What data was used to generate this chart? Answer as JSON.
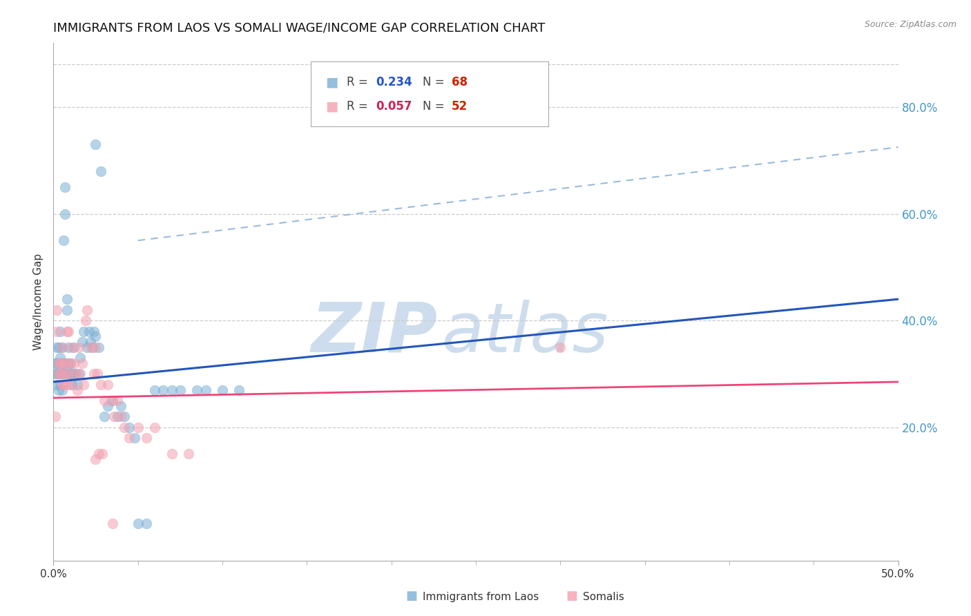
{
  "title": "IMMIGRANTS FROM LAOS VS SOMALI WAGE/INCOME GAP CORRELATION CHART",
  "source": "Source: ZipAtlas.com",
  "ylabel": "Wage/Income Gap",
  "xlim": [
    0.0,
    0.5
  ],
  "ylim": [
    -0.05,
    0.92
  ],
  "xticks": [
    0.0,
    0.5
  ],
  "xtick_labels": [
    "0.0%",
    "50.0%"
  ],
  "yticks_right": [
    0.2,
    0.4,
    0.6,
    0.8
  ],
  "ytick_labels_right": [
    "20.0%",
    "40.0%",
    "60.0%",
    "80.0%"
  ],
  "grid_color": "#cccccc",
  "background_color": "#ffffff",
  "series": [
    {
      "name": "Immigrants from Laos",
      "color": "#7bafd4",
      "R": 0.234,
      "N": 68,
      "x": [
        0.001,
        0.001,
        0.002,
        0.002,
        0.002,
        0.002,
        0.003,
        0.003,
        0.003,
        0.003,
        0.004,
        0.004,
        0.004,
        0.004,
        0.005,
        0.005,
        0.005,
        0.005,
        0.006,
        0.006,
        0.006,
        0.007,
        0.007,
        0.007,
        0.007,
        0.008,
        0.008,
        0.009,
        0.009,
        0.009,
        0.01,
        0.01,
        0.011,
        0.011,
        0.012,
        0.013,
        0.014,
        0.015,
        0.016,
        0.017,
        0.018,
        0.02,
        0.021,
        0.022,
        0.023,
        0.024,
        0.025,
        0.027,
        0.03,
        0.032,
        0.035,
        0.038,
        0.04,
        0.042,
        0.045,
        0.048,
        0.05,
        0.055,
        0.06,
        0.065,
        0.07,
        0.075,
        0.085,
        0.09,
        0.1,
        0.11,
        0.025,
        0.028
      ],
      "y": [
        0.3,
        0.32,
        0.28,
        0.3,
        0.32,
        0.35,
        0.27,
        0.3,
        0.32,
        0.35,
        0.28,
        0.3,
        0.33,
        0.38,
        0.27,
        0.3,
        0.32,
        0.35,
        0.3,
        0.32,
        0.55,
        0.6,
        0.65,
        0.3,
        0.32,
        0.42,
        0.44,
        0.3,
        0.32,
        0.35,
        0.3,
        0.32,
        0.28,
        0.3,
        0.35,
        0.3,
        0.28,
        0.3,
        0.33,
        0.36,
        0.38,
        0.35,
        0.38,
        0.36,
        0.35,
        0.38,
        0.37,
        0.35,
        0.22,
        0.24,
        0.25,
        0.22,
        0.24,
        0.22,
        0.2,
        0.18,
        0.02,
        0.02,
        0.27,
        0.27,
        0.27,
        0.27,
        0.27,
        0.27,
        0.27,
        0.27,
        0.73,
        0.68
      ]
    },
    {
      "name": "Somalis",
      "color": "#f4a0b0",
      "R": 0.057,
      "N": 52,
      "x": [
        0.001,
        0.002,
        0.002,
        0.003,
        0.003,
        0.004,
        0.004,
        0.005,
        0.005,
        0.006,
        0.006,
        0.007,
        0.007,
        0.008,
        0.008,
        0.009,
        0.009,
        0.01,
        0.01,
        0.011,
        0.012,
        0.013,
        0.014,
        0.015,
        0.016,
        0.017,
        0.018,
        0.019,
        0.02,
        0.022,
        0.024,
        0.025,
        0.026,
        0.028,
        0.03,
        0.032,
        0.034,
        0.036,
        0.038,
        0.04,
        0.042,
        0.045,
        0.05,
        0.055,
        0.06,
        0.07,
        0.08,
        0.025,
        0.027,
        0.029,
        0.035,
        0.3
      ],
      "y": [
        0.22,
        0.38,
        0.42,
        0.3,
        0.32,
        0.3,
        0.32,
        0.28,
        0.35,
        0.28,
        0.32,
        0.3,
        0.32,
        0.28,
        0.38,
        0.3,
        0.38,
        0.28,
        0.32,
        0.35,
        0.32,
        0.3,
        0.27,
        0.35,
        0.3,
        0.32,
        0.28,
        0.4,
        0.42,
        0.35,
        0.3,
        0.35,
        0.3,
        0.28,
        0.25,
        0.28,
        0.25,
        0.22,
        0.25,
        0.22,
        0.2,
        0.18,
        0.2,
        0.18,
        0.2,
        0.15,
        0.15,
        0.14,
        0.15,
        0.15,
        0.02,
        0.35
      ]
    }
  ],
  "laos_line": {
    "x0": 0.0,
    "y0": 0.285,
    "x1": 0.5,
    "y1": 0.44
  },
  "somali_line": {
    "x0": 0.0,
    "y0": 0.255,
    "x1": 0.5,
    "y1": 0.285
  },
  "dashed_line": {
    "x0": 0.05,
    "y0": 0.55,
    "x1": 0.5,
    "y1": 0.725
  },
  "watermark_zip": "ZIP",
  "watermark_atlas": "atlas",
  "legend_R_color_laos": "#2255cc",
  "legend_N_color_laos": "#cc2200",
  "legend_R_color_somali": "#cc2255",
  "legend_N_color_somali": "#cc2200",
  "title_fontsize": 13,
  "axis_label_fontsize": 11,
  "tick_fontsize": 11,
  "right_tick_color": "#4499cc"
}
